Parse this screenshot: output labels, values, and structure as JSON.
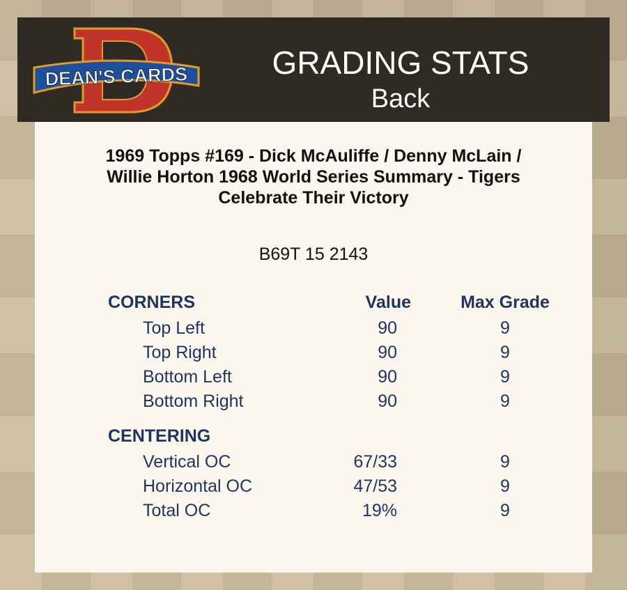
{
  "header": {
    "logo_text": "DEAN'S CARDS",
    "title": "GRADING STATS",
    "subtitle": "Back"
  },
  "card": {
    "title_lines": [
      "1969 Topps #169  -  Dick McAuliffe / Denny McLain /",
      "Willie Horton 1968 World Series Summary - Tigers",
      "Celebrate Their Victory"
    ],
    "cert": "B69T 15 2143"
  },
  "columns": {
    "value": "Value",
    "max_grade": "Max Grade"
  },
  "corners": {
    "heading": "CORNERS",
    "rows": [
      {
        "label": "Top Left",
        "value": "90",
        "max": "9"
      },
      {
        "label": "Top Right",
        "value": "90",
        "max": "9"
      },
      {
        "label": "Bottom Left",
        "value": "90",
        "max": "9"
      },
      {
        "label": "Bottom Right",
        "value": "90",
        "max": "9"
      }
    ]
  },
  "centering": {
    "heading": "CENTERING",
    "rows": [
      {
        "label": "Vertical OC",
        "value": "67/33",
        "max": "9"
      },
      {
        "label": "Horizontal OC",
        "value": "47/53",
        "max": "9"
      },
      {
        "label": "Total OC",
        "value": "19%",
        "max": "9"
      }
    ]
  },
  "colors": {
    "header_bg": "#2f2a22",
    "panel_bg": "#fcf7ee",
    "text_navy": "#1f3560",
    "logo_red": "#c0342a",
    "logo_blue": "#1c4f9c"
  }
}
